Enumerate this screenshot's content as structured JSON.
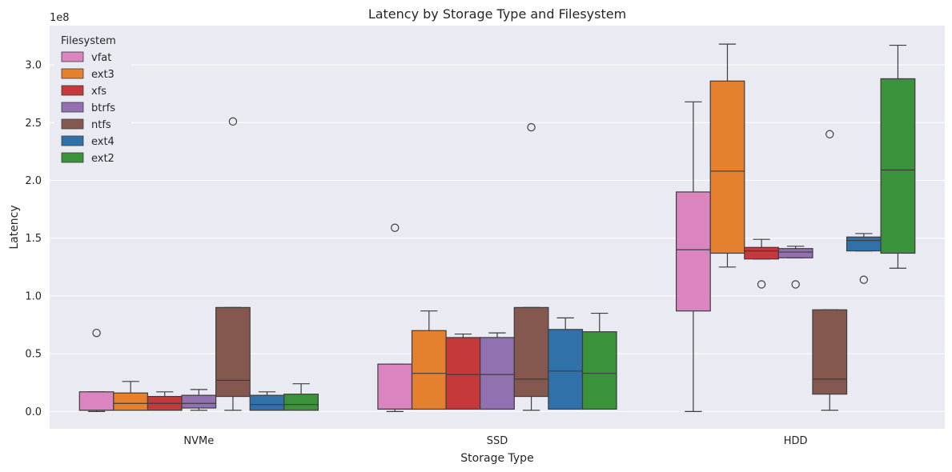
{
  "chart_data": {
    "type": "box",
    "title": "Latency by Storage Type and Filesystem",
    "xlabel": "Storage Type",
    "ylabel": "Latency",
    "y_offset_text": "1e8",
    "categories": [
      "NVMe",
      "SSD",
      "HDD"
    ],
    "yticks": [
      0.0,
      0.5,
      1.0,
      1.5,
      2.0,
      2.5,
      3.0
    ],
    "ytick_labels": [
      "0.0",
      "0.5",
      "1.0",
      "1.5",
      "2.0",
      "2.5",
      "3.0"
    ],
    "ylim": [
      -0.15,
      3.34
    ],
    "grid": true,
    "legend": {
      "title": "Filesystem",
      "placement": "top-left"
    },
    "series": [
      {
        "name": "vfat",
        "color": "#da84c0",
        "boxes": [
          {
            "category": "NVMe",
            "whisker_low": 0.0,
            "q1": 0.01,
            "median": 0.01,
            "q3": 0.17,
            "whisker_high": 0.17,
            "outliers": [
              0.68
            ]
          },
          {
            "category": "SSD",
            "whisker_low": 0.0,
            "q1": 0.02,
            "median": 0.02,
            "q3": 0.41,
            "whisker_high": 0.41,
            "outliers": [
              1.59
            ]
          },
          {
            "category": "HDD",
            "whisker_low": 0.0,
            "q1": 0.87,
            "median": 1.4,
            "q3": 1.9,
            "whisker_high": 2.68,
            "outliers": []
          }
        ]
      },
      {
        "name": "ext3",
        "color": "#e5812e",
        "boxes": [
          {
            "category": "NVMe",
            "whisker_low": 0.01,
            "q1": 0.01,
            "median": 0.07,
            "q3": 0.16,
            "whisker_high": 0.26,
            "outliers": []
          },
          {
            "category": "SSD",
            "whisker_low": 0.02,
            "q1": 0.02,
            "median": 0.33,
            "q3": 0.7,
            "whisker_high": 0.87,
            "outliers": []
          },
          {
            "category": "HDD",
            "whisker_low": 1.25,
            "q1": 1.37,
            "median": 2.08,
            "q3": 2.86,
            "whisker_high": 3.18,
            "outliers": []
          }
        ]
      },
      {
        "name": "xfs",
        "color": "#c5393a",
        "boxes": [
          {
            "category": "NVMe",
            "whisker_low": 0.01,
            "q1": 0.01,
            "median": 0.07,
            "q3": 0.13,
            "whisker_high": 0.17,
            "outliers": []
          },
          {
            "category": "SSD",
            "whisker_low": 0.02,
            "q1": 0.02,
            "median": 0.32,
            "q3": 0.64,
            "whisker_high": 0.67,
            "outliers": []
          },
          {
            "category": "HDD",
            "whisker_low": 1.32,
            "q1": 1.32,
            "median": 1.39,
            "q3": 1.42,
            "whisker_high": 1.49,
            "outliers": [
              1.1
            ]
          }
        ]
      },
      {
        "name": "btrfs",
        "color": "#9271b1",
        "boxes": [
          {
            "category": "NVMe",
            "whisker_low": 0.01,
            "q1": 0.03,
            "median": 0.07,
            "q3": 0.14,
            "whisker_high": 0.19,
            "outliers": []
          },
          {
            "category": "SSD",
            "whisker_low": 0.02,
            "q1": 0.02,
            "median": 0.32,
            "q3": 0.64,
            "whisker_high": 0.68,
            "outliers": []
          },
          {
            "category": "HDD",
            "whisker_low": 1.33,
            "q1": 1.33,
            "median": 1.38,
            "q3": 1.41,
            "whisker_high": 1.43,
            "outliers": [
              1.1
            ]
          }
        ]
      },
      {
        "name": "ntfs",
        "color": "#85584f",
        "boxes": [
          {
            "category": "NVMe",
            "whisker_low": 0.01,
            "q1": 0.13,
            "median": 0.27,
            "q3": 0.9,
            "whisker_high": 0.9,
            "outliers": [
              2.51
            ]
          },
          {
            "category": "SSD",
            "whisker_low": 0.01,
            "q1": 0.13,
            "median": 0.28,
            "q3": 0.9,
            "whisker_high": 0.9,
            "outliers": [
              2.46
            ]
          },
          {
            "category": "HDD",
            "whisker_low": 0.01,
            "q1": 0.15,
            "median": 0.28,
            "q3": 0.88,
            "whisker_high": 0.88,
            "outliers": [
              2.4
            ]
          }
        ]
      },
      {
        "name": "ext4",
        "color": "#2f71a8",
        "boxes": [
          {
            "category": "NVMe",
            "whisker_low": 0.01,
            "q1": 0.01,
            "median": 0.06,
            "q3": 0.14,
            "whisker_high": 0.17,
            "outliers": []
          },
          {
            "category": "SSD",
            "whisker_low": 0.02,
            "q1": 0.02,
            "median": 0.35,
            "q3": 0.71,
            "whisker_high": 0.81,
            "outliers": []
          },
          {
            "category": "HDD",
            "whisker_low": 1.39,
            "q1": 1.39,
            "median": 1.48,
            "q3": 1.51,
            "whisker_high": 1.54,
            "outliers": [
              1.14
            ]
          }
        ]
      },
      {
        "name": "ext2",
        "color": "#3a923a",
        "boxes": [
          {
            "category": "NVMe",
            "whisker_low": 0.01,
            "q1": 0.01,
            "median": 0.06,
            "q3": 0.15,
            "whisker_high": 0.24,
            "outliers": []
          },
          {
            "category": "SSD",
            "whisker_low": 0.02,
            "q1": 0.02,
            "median": 0.33,
            "q3": 0.69,
            "whisker_high": 0.85,
            "outliers": []
          },
          {
            "category": "HDD",
            "whisker_low": 1.24,
            "q1": 1.37,
            "median": 2.09,
            "q3": 2.88,
            "whisker_high": 3.17,
            "outliers": []
          }
        ]
      }
    ]
  },
  "style": {
    "plot_background": "#eaeaf2",
    "grid_color": "#ffffff",
    "edge_color": "#3d3d3d"
  }
}
